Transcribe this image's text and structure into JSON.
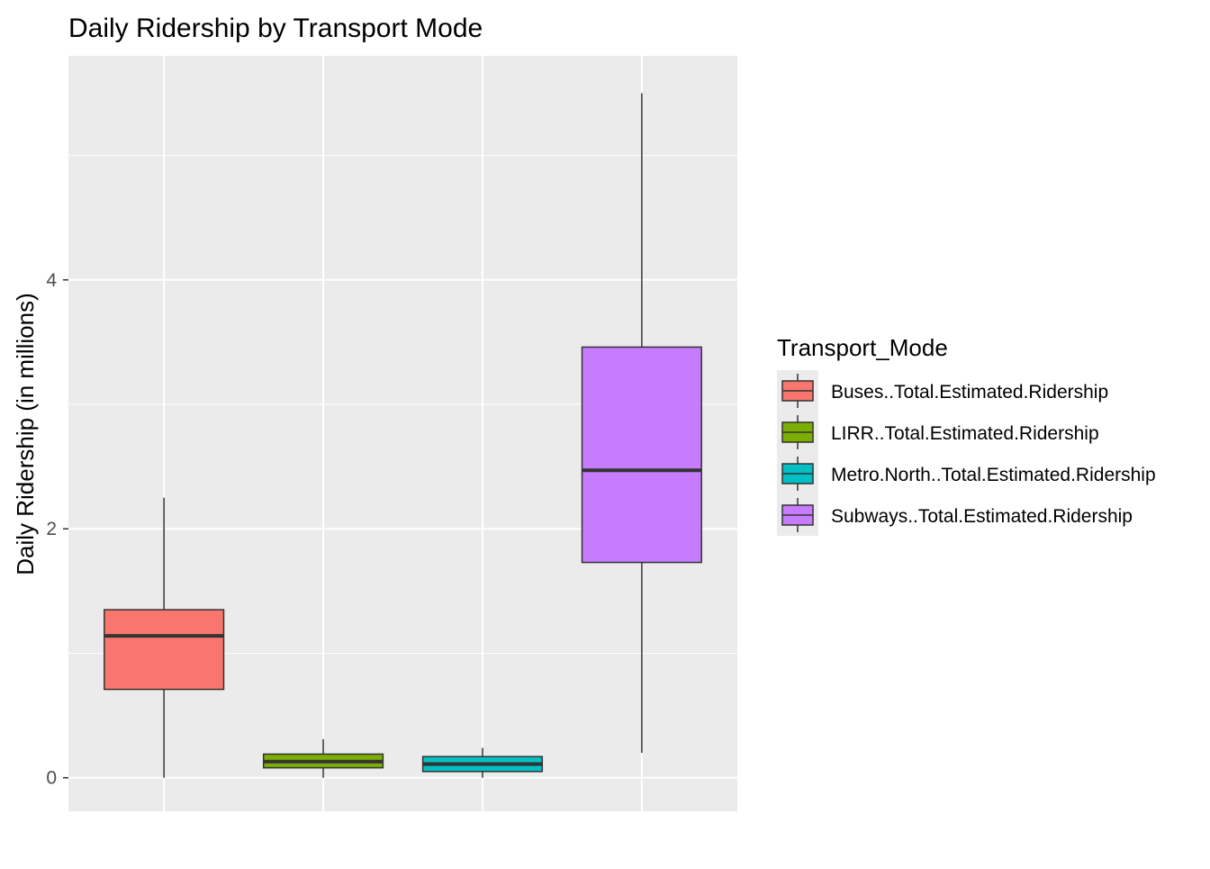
{
  "chart_data": {
    "type": "boxplot",
    "title": "Daily Ridership by Transport Mode",
    "xlabel": "",
    "ylabel": "Daily Ridership (in millions)",
    "ylim": [
      -0.27,
      5.8
    ],
    "yticks": [
      0,
      2,
      4
    ],
    "grid": true,
    "legend": {
      "title": "Transport_Mode",
      "position": "right"
    },
    "series": [
      {
        "name": "Buses..Total.Estimated.Ridership",
        "color": "#F8766D",
        "min": 0.0,
        "q1": 0.71,
        "median": 1.14,
        "q3": 1.35,
        "max": 2.25
      },
      {
        "name": "LIRR..Total.Estimated.Ridership",
        "color": "#7CAE00",
        "min": 0.0,
        "q1": 0.08,
        "median": 0.13,
        "q3": 0.19,
        "max": 0.31
      },
      {
        "name": "Metro.North..Total.Estimated.Ridership",
        "color": "#00BFC4",
        "min": 0.0,
        "q1": 0.05,
        "median": 0.11,
        "q3": 0.17,
        "max": 0.24
      },
      {
        "name": "Subways..Total.Estimated.Ridership",
        "color": "#C77CFF",
        "min": 0.2,
        "q1": 1.73,
        "median": 2.47,
        "q3": 3.46,
        "max": 5.5
      }
    ]
  }
}
